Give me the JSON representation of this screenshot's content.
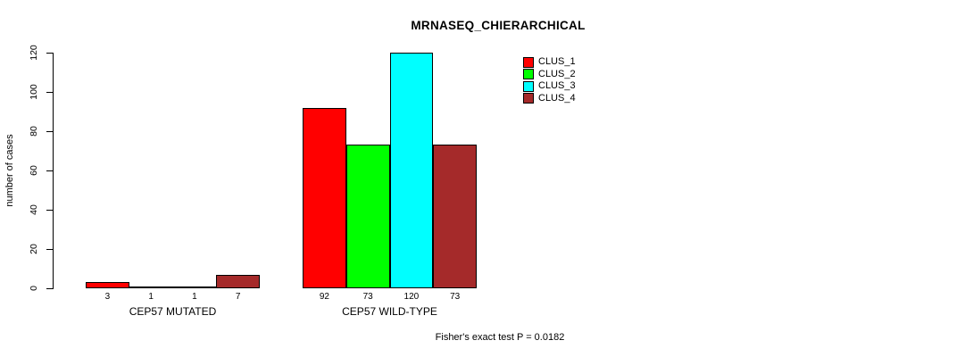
{
  "chart_data": {
    "type": "bar",
    "title": "MRNASEQ_CHIERARCHICAL",
    "ylabel": "number of cases",
    "ylim": [
      0,
      120
    ],
    "yticks": [
      0,
      20,
      40,
      60,
      80,
      100,
      120
    ],
    "grid": false,
    "legend_position": "top-right",
    "series": [
      {
        "name": "CLUS_1",
        "color": "#ff0000",
        "values": [
          3,
          92
        ]
      },
      {
        "name": "CLUS_2",
        "color": "#00ff00",
        "values": [
          1,
          73
        ]
      },
      {
        "name": "CLUS_3",
        "color": "#00ffff",
        "values": [
          1,
          120
        ]
      },
      {
        "name": "CLUS_4",
        "color": "#a52a2a",
        "values": [
          7,
          73
        ]
      }
    ],
    "groups": [
      {
        "label": "CEP57 MUTATED",
        "values": [
          3,
          1,
          1,
          7
        ]
      },
      {
        "label": "CEP57 WILD-TYPE",
        "values": [
          92,
          73,
          120,
          73
        ]
      }
    ],
    "bar_value_labels": [
      [
        3,
        1,
        1,
        7
      ],
      [
        92,
        73,
        120,
        73
      ]
    ],
    "annotation": "Fisher's exact test P = 0.0182",
    "axis_color": "#000000",
    "bar_border_color": "#000000"
  }
}
